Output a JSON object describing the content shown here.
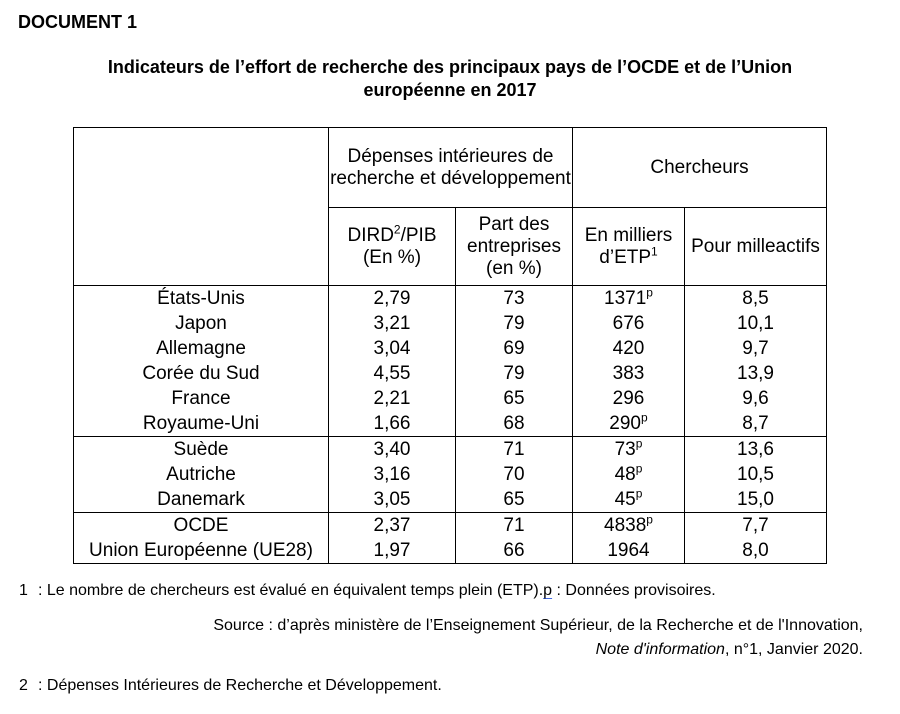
{
  "page": {
    "doc_label": "DOCUMENT 1",
    "title_line1": "Indicateurs de l’effort de recherche des principaux pays de l’OCDE et de l’Union",
    "title_line2": "européenne en 2017"
  },
  "table": {
    "group_headers": {
      "depenses": "Dépenses intérieures de recherche et développement",
      "chercheurs": "Chercheurs"
    },
    "subheaders": {
      "dird": {
        "pre": "DIRD",
        "sup": "2",
        "post": "/PIB",
        "line2": "(En %)"
      },
      "part": {
        "line1": "Part des",
        "line2": "entreprises",
        "line3": "(en %)"
      },
      "etp": {
        "line1": "En milliers",
        "pre": "d’ETP",
        "sup": "1"
      },
      "actifs": "Pour milleactifs"
    },
    "groups": [
      {
        "rows": [
          {
            "country": "États-Unis",
            "dird": "2,79",
            "part": "73",
            "etp": "1371",
            "etp_sup": "p",
            "actifs": "8,5"
          },
          {
            "country": "Japon",
            "dird": "3,21",
            "part": "79",
            "etp": "676",
            "etp_sup": "",
            "actifs": "10,1"
          },
          {
            "country": "Allemagne",
            "dird": "3,04",
            "part": "69",
            "etp": "420",
            "etp_sup": "",
            "actifs": "9,7"
          },
          {
            "country": "Corée du Sud",
            "dird": "4,55",
            "part": "79",
            "etp": "383",
            "etp_sup": "",
            "actifs": "13,9"
          },
          {
            "country": "France",
            "dird": "2,21",
            "part": "65",
            "etp": "296",
            "etp_sup": "",
            "actifs": "9,6"
          },
          {
            "country": "Royaume-Uni",
            "dird": "1,66",
            "part": "68",
            "etp": "290",
            "etp_sup": "p",
            "actifs": "8,7"
          }
        ]
      },
      {
        "rows": [
          {
            "country": "Suède",
            "dird": "3,40",
            "part": "71",
            "etp": "73",
            "etp_sup": "p",
            "actifs": "13,6"
          },
          {
            "country": "Autriche",
            "dird": "3,16",
            "part": "70",
            "etp": "48",
            "etp_sup": "p",
            "actifs": "10,5"
          },
          {
            "country": "Danemark",
            "dird": "3,05",
            "part": "65",
            "etp": "45",
            "etp_sup": "p",
            "actifs": "15,0"
          }
        ]
      },
      {
        "rows": [
          {
            "country": "OCDE",
            "dird": "2,37",
            "part": "71",
            "etp": "4838",
            "etp_sup": "p",
            "actifs": "7,7"
          },
          {
            "country": "Union Européenne (UE28)",
            "dird": "1,97",
            "part": "66",
            "etp": "1964",
            "etp_sup": "",
            "actifs": "8,0"
          }
        ]
      }
    ]
  },
  "footnotes": {
    "note1": {
      "num": "1",
      "text": ": Le nombre de chercheurs est évalué en équivalent temps plein (ETP).",
      "p_label": "p",
      "p_text": " : Données provisoires."
    },
    "source": {
      "line1": "Source : d’après ministère de l’Enseignement Supérieur, de la Recherche et de l'Innovation,",
      "line2_italic": "Note d'information",
      "line2_rest": ", n°1, Janvier 2020."
    },
    "note2": {
      "num": "2",
      "text": ": Dépenses Intérieures de Recherche et Développement."
    }
  },
  "colors": {
    "text": "#000000",
    "border": "#000000",
    "p_underline": "#4169e1",
    "background": "#ffffff"
  }
}
